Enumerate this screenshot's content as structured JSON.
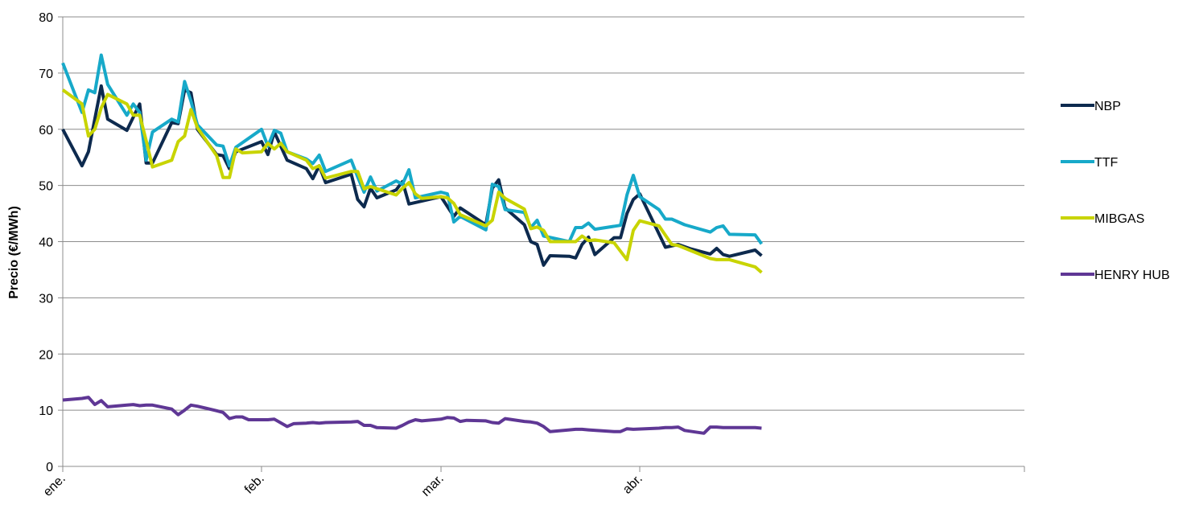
{
  "chart_data": {
    "type": "line",
    "title": "",
    "xlabel": "",
    "ylabel": "Precio (€/MWh)",
    "ylim": [
      0,
      80
    ],
    "yticks": [
      "0",
      "10",
      "20",
      "30",
      "40",
      "50",
      "60",
      "70",
      "80"
    ],
    "xlim": [
      0,
      150
    ],
    "xticks": [
      {
        "label": "ene.",
        "x": 0
      },
      {
        "label": "feb.",
        "x": 31
      },
      {
        "label": "mar.",
        "x": 59
      },
      {
        "label": "abr.",
        "x": 90
      }
    ],
    "grid": true,
    "legend": "right",
    "series": [
      {
        "name": "NBP",
        "color": "#0d2a4e",
        "points": [
          [
            0,
            60
          ],
          [
            3,
            53.5
          ],
          [
            4,
            56
          ],
          [
            6,
            67.7
          ],
          [
            7,
            61.8
          ],
          [
            10,
            59.8
          ],
          [
            12,
            64.5
          ],
          [
            13,
            54
          ],
          [
            14,
            54
          ],
          [
            17,
            61.2
          ],
          [
            18,
            61
          ],
          [
            19,
            67
          ],
          [
            20,
            66.5
          ],
          [
            21,
            60
          ],
          [
            24,
            55.5
          ],
          [
            25,
            55.3
          ],
          [
            26,
            53
          ],
          [
            27,
            56
          ],
          [
            31,
            57.8
          ],
          [
            32,
            55.5
          ],
          [
            33,
            59.5
          ],
          [
            35,
            54.5
          ],
          [
            38,
            53
          ],
          [
            39,
            51.2
          ],
          [
            40,
            53.5
          ],
          [
            41,
            50.5
          ],
          [
            45,
            52
          ],
          [
            46,
            47.5
          ],
          [
            47,
            46.2
          ],
          [
            48,
            49.5
          ],
          [
            49,
            47.8
          ],
          [
            52,
            49.2
          ],
          [
            53,
            50.7
          ],
          [
            54,
            46.7
          ],
          [
            59,
            48
          ],
          [
            61,
            44.5
          ],
          [
            62,
            46
          ],
          [
            66,
            43
          ],
          [
            67,
            49.5
          ],
          [
            68,
            51
          ],
          [
            69,
            46
          ],
          [
            72,
            43
          ],
          [
            73,
            40
          ],
          [
            74,
            39.5
          ],
          [
            75,
            35.8
          ],
          [
            76,
            37.5
          ],
          [
            79,
            37.4
          ],
          [
            80,
            37.1
          ],
          [
            81,
            39.5
          ],
          [
            82,
            40.8
          ],
          [
            83,
            37.7
          ],
          [
            86,
            40.7
          ],
          [
            87,
            40.7
          ],
          [
            88,
            45
          ],
          [
            89,
            47.5
          ],
          [
            90,
            48.5
          ],
          [
            94,
            39
          ],
          [
            96,
            39.5
          ],
          [
            98,
            38.7
          ],
          [
            101,
            37.8
          ],
          [
            102,
            38.8
          ],
          [
            103,
            37.7
          ],
          [
            104,
            37.4
          ],
          [
            108,
            38.5
          ],
          [
            109,
            37.5
          ]
        ]
      },
      {
        "name": "TTF",
        "color": "#17a9c9",
        "points": [
          [
            0,
            71.8
          ],
          [
            3,
            63
          ],
          [
            4,
            67
          ],
          [
            5,
            66.5
          ],
          [
            6,
            73.2
          ],
          [
            7,
            68
          ],
          [
            10,
            62.5
          ],
          [
            11,
            64.5
          ],
          [
            12,
            63
          ],
          [
            13,
            54.5
          ],
          [
            14,
            59.5
          ],
          [
            17,
            61.8
          ],
          [
            18,
            61.3
          ],
          [
            19,
            68.5
          ],
          [
            20,
            65
          ],
          [
            21,
            60.8
          ],
          [
            24,
            57.2
          ],
          [
            25,
            57
          ],
          [
            26,
            53.5
          ],
          [
            27,
            56.8
          ],
          [
            31,
            60
          ],
          [
            32,
            57
          ],
          [
            33,
            59.8
          ],
          [
            34,
            59.3
          ],
          [
            35,
            56
          ],
          [
            38,
            54.7
          ],
          [
            39,
            53.9
          ],
          [
            40,
            55.4
          ],
          [
            41,
            52.5
          ],
          [
            45,
            54.5
          ],
          [
            46,
            51.5
          ],
          [
            47,
            48.8
          ],
          [
            48,
            51.5
          ],
          [
            49,
            49
          ],
          [
            52,
            50.8
          ],
          [
            53,
            50.2
          ],
          [
            54,
            52.8
          ],
          [
            55,
            47.8
          ],
          [
            59,
            48.8
          ],
          [
            60,
            48.5
          ],
          [
            61,
            43.5
          ],
          [
            62,
            44.5
          ],
          [
            66,
            42.1
          ],
          [
            67,
            50.2
          ],
          [
            68,
            49.8
          ],
          [
            69,
            45.7
          ],
          [
            72,
            45.2
          ],
          [
            73,
            42.5
          ],
          [
            74,
            43.8
          ],
          [
            75,
            41
          ],
          [
            79,
            40
          ],
          [
            80,
            42.5
          ],
          [
            81,
            42.5
          ],
          [
            82,
            43.3
          ],
          [
            83,
            42.2
          ],
          [
            87,
            42.9
          ],
          [
            88,
            48.3
          ],
          [
            89,
            51.8
          ],
          [
            90,
            48
          ],
          [
            93,
            45.7
          ],
          [
            94,
            44
          ],
          [
            95,
            44
          ],
          [
            96,
            43.5
          ],
          [
            97,
            43
          ],
          [
            101,
            41.7
          ],
          [
            102,
            42.5
          ],
          [
            103,
            42.8
          ],
          [
            104,
            41.3
          ],
          [
            108,
            41.2
          ],
          [
            109,
            39.6
          ]
        ]
      },
      {
        "name": "MIBGAS",
        "color": "#c8d400",
        "points": [
          [
            0,
            67
          ],
          [
            3,
            64.5
          ],
          [
            4,
            58.8
          ],
          [
            5,
            60
          ],
          [
            6,
            63.8
          ],
          [
            7,
            66.2
          ],
          [
            10,
            64.5
          ],
          [
            11,
            62.5
          ],
          [
            12,
            62.5
          ],
          [
            13,
            58
          ],
          [
            14,
            53.3
          ],
          [
            17,
            54.5
          ],
          [
            18,
            57.8
          ],
          [
            19,
            58.8
          ],
          [
            20,
            63.5
          ],
          [
            21,
            60.3
          ],
          [
            24,
            55.3
          ],
          [
            25,
            51.4
          ],
          [
            26,
            51.4
          ],
          [
            27,
            56.5
          ],
          [
            28,
            55.8
          ],
          [
            31,
            56
          ],
          [
            32,
            57.5
          ],
          [
            33,
            56.5
          ],
          [
            34,
            57.5
          ],
          [
            35,
            56
          ],
          [
            38,
            54.5
          ],
          [
            39,
            53
          ],
          [
            40,
            53.5
          ],
          [
            41,
            51.3
          ],
          [
            45,
            52.5
          ],
          [
            46,
            52.5
          ],
          [
            47,
            49.4
          ],
          [
            48,
            49.8
          ],
          [
            52,
            48.3
          ],
          [
            53,
            49.5
          ],
          [
            54,
            50.5
          ],
          [
            55,
            48.5
          ],
          [
            56,
            47.7
          ],
          [
            59,
            48
          ],
          [
            60,
            47.8
          ],
          [
            61,
            46.8
          ],
          [
            62,
            44.8
          ],
          [
            66,
            42.8
          ],
          [
            67,
            43.8
          ],
          [
            68,
            48.8
          ],
          [
            69,
            47.7
          ],
          [
            72,
            45.8
          ],
          [
            73,
            42.3
          ],
          [
            74,
            42.6
          ],
          [
            75,
            42
          ],
          [
            76,
            40
          ],
          [
            79,
            40
          ],
          [
            80,
            40
          ],
          [
            81,
            41
          ],
          [
            82,
            40.2
          ],
          [
            83,
            40.3
          ],
          [
            86,
            39.8
          ],
          [
            88,
            36.8
          ],
          [
            89,
            42
          ],
          [
            90,
            43.7
          ],
          [
            93,
            42.8
          ],
          [
            95,
            39.5
          ],
          [
            96,
            39.3
          ],
          [
            101,
            37
          ],
          [
            102,
            36.8
          ],
          [
            103,
            36.8
          ],
          [
            104,
            36.8
          ],
          [
            108,
            35.5
          ],
          [
            109,
            34.5
          ]
        ]
      },
      {
        "name": "HENRY HUB",
        "color": "#5f3795",
        "points": [
          [
            0,
            11.8
          ],
          [
            3,
            12.1
          ],
          [
            4,
            12.3
          ],
          [
            5,
            11
          ],
          [
            6,
            11.7
          ],
          [
            7,
            10.6
          ],
          [
            10,
            10.9
          ],
          [
            11,
            11
          ],
          [
            12,
            10.8
          ],
          [
            13,
            10.9
          ],
          [
            14,
            10.9
          ],
          [
            17,
            10.2
          ],
          [
            18,
            9.2
          ],
          [
            19,
            10
          ],
          [
            20,
            10.9
          ],
          [
            21,
            10.7
          ],
          [
            24,
            9.9
          ],
          [
            25,
            9.6
          ],
          [
            26,
            8.5
          ],
          [
            27,
            8.8
          ],
          [
            28,
            8.8
          ],
          [
            29,
            8.3
          ],
          [
            32,
            8.3
          ],
          [
            33,
            8.4
          ],
          [
            35,
            7.1
          ],
          [
            36,
            7.6
          ],
          [
            38,
            7.7
          ],
          [
            39,
            7.8
          ],
          [
            40,
            7.7
          ],
          [
            41,
            7.8
          ],
          [
            45,
            7.9
          ],
          [
            46,
            8
          ],
          [
            47,
            7.3
          ],
          [
            48,
            7.3
          ],
          [
            49,
            6.9
          ],
          [
            52,
            6.8
          ],
          [
            53,
            7.3
          ],
          [
            54,
            7.9
          ],
          [
            55,
            8.3
          ],
          [
            56,
            8.1
          ],
          [
            59,
            8.4
          ],
          [
            60,
            8.7
          ],
          [
            61,
            8.6
          ],
          [
            62,
            8
          ],
          [
            63,
            8.2
          ],
          [
            66,
            8.1
          ],
          [
            67,
            7.8
          ],
          [
            68,
            7.7
          ],
          [
            69,
            8.5
          ],
          [
            72,
            8
          ],
          [
            73,
            7.9
          ],
          [
            74,
            7.7
          ],
          [
            75,
            7.1
          ],
          [
            76,
            6.2
          ],
          [
            79,
            6.5
          ],
          [
            80,
            6.6
          ],
          [
            81,
            6.6
          ],
          [
            82,
            6.5
          ],
          [
            86,
            6.2
          ],
          [
            87,
            6.2
          ],
          [
            88,
            6.7
          ],
          [
            89,
            6.6
          ],
          [
            93,
            6.8
          ],
          [
            94,
            6.9
          ],
          [
            95,
            6.9
          ],
          [
            96,
            7
          ],
          [
            97,
            6.4
          ],
          [
            100,
            5.9
          ],
          [
            101,
            7
          ],
          [
            102,
            7
          ],
          [
            103,
            6.9
          ],
          [
            104,
            6.9
          ],
          [
            108,
            6.9
          ],
          [
            109,
            6.8
          ]
        ]
      }
    ]
  }
}
